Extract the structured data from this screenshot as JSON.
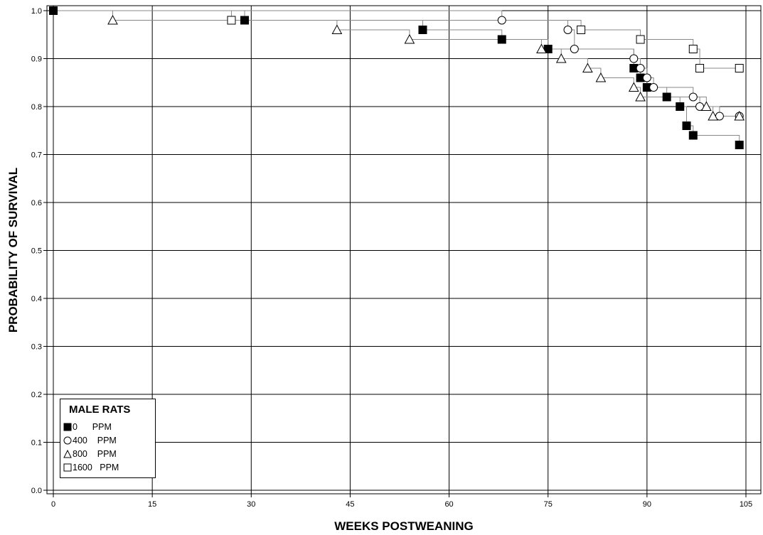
{
  "chart_data": {
    "type": "line",
    "title": "",
    "xlabel": "WEEKS POSTWEANING",
    "ylabel": "PROBABILITY OF SURVIVAL",
    "xlim": [
      0,
      106
    ],
    "ylim": [
      0.0,
      1.0
    ],
    "x_ticks": [
      "0",
      "15",
      "30",
      "45",
      "60",
      "75",
      "90",
      "105"
    ],
    "y_ticks": [
      "0.0",
      "0.1",
      "0.2",
      "0.3",
      "0.4",
      "0.5",
      "0.6",
      "0.7",
      "0.8",
      "0.9",
      "1.0"
    ],
    "grid": true,
    "step": true,
    "legend": {
      "title": "MALE RATS",
      "placement": "bottom-left",
      "entries": [
        {
          "label": "0      PPM",
          "marker": "filled-square"
        },
        {
          "label": "400    PPM",
          "marker": "open-circle"
        },
        {
          "label": "800    PPM",
          "marker": "open-triangle"
        },
        {
          "label": "1600   PPM",
          "marker": "open-square"
        }
      ]
    },
    "series": [
      {
        "name": "0 PPM",
        "marker": "filled-square",
        "color": "#000000",
        "points": [
          [
            0,
            1.0
          ],
          [
            29,
            0.98
          ],
          [
            56,
            0.96
          ],
          [
            68,
            0.94
          ],
          [
            75,
            0.92
          ],
          [
            88,
            0.88
          ],
          [
            89,
            0.86
          ],
          [
            90,
            0.84
          ],
          [
            93,
            0.82
          ],
          [
            95,
            0.8
          ],
          [
            96,
            0.76
          ],
          [
            97,
            0.74
          ],
          [
            104,
            0.72
          ]
        ]
      },
      {
        "name": "400 PPM",
        "marker": "open-circle",
        "color": "#000000",
        "points": [
          [
            0,
            1.0
          ],
          [
            68,
            0.98
          ],
          [
            78,
            0.96
          ],
          [
            79,
            0.92
          ],
          [
            88,
            0.9
          ],
          [
            89,
            0.88
          ],
          [
            90,
            0.86
          ],
          [
            91,
            0.84
          ],
          [
            97,
            0.82
          ],
          [
            98,
            0.8
          ],
          [
            101,
            0.78
          ],
          [
            104,
            0.78
          ]
        ]
      },
      {
        "name": "800 PPM",
        "marker": "open-triangle",
        "color": "#000000",
        "points": [
          [
            0,
            1.0
          ],
          [
            9,
            0.98
          ],
          [
            43,
            0.96
          ],
          [
            54,
            0.94
          ],
          [
            74,
            0.92
          ],
          [
            77,
            0.9
          ],
          [
            81,
            0.88
          ],
          [
            83,
            0.86
          ],
          [
            88,
            0.84
          ],
          [
            89,
            0.82
          ],
          [
            99,
            0.8
          ],
          [
            100,
            0.78
          ],
          [
            104,
            0.78
          ]
        ]
      },
      {
        "name": "1600 PPM",
        "marker": "open-square",
        "color": "#000000",
        "points": [
          [
            0,
            1.0
          ],
          [
            27,
            0.98
          ],
          [
            80,
            0.96
          ],
          [
            89,
            0.94
          ],
          [
            97,
            0.92
          ],
          [
            98,
            0.88
          ],
          [
            104,
            0.88
          ]
        ]
      }
    ]
  }
}
